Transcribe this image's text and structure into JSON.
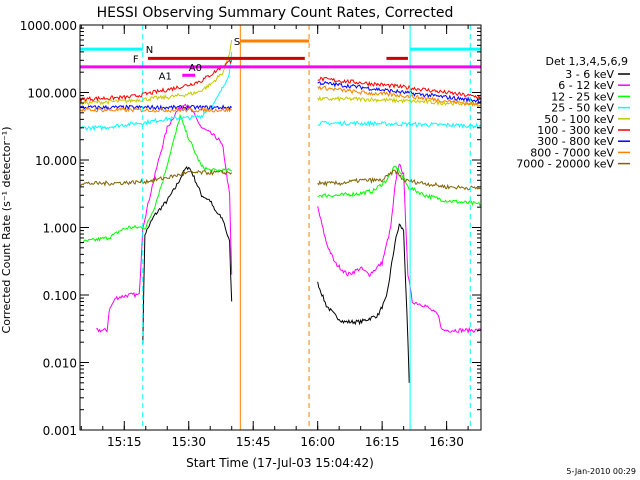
{
  "chart_data": {
    "type": "line",
    "title": "HESSI Observing Summary Count Rates, Corrected",
    "xlabel": "Start Time (17-Jul-03 15:04:42)",
    "ylabel": "Corrected Count Rate (s⁻¹ detector⁻¹)",
    "y_scale": "log",
    "ylim": [
      0.001,
      1000
    ],
    "xlim_minutes_after_15_00": [
      4.7,
      98
    ],
    "x_ticks": [
      {
        "minute": 15,
        "label": "15:15"
      },
      {
        "minute": 30,
        "label": "15:30"
      },
      {
        "minute": 45,
        "label": "15:45"
      },
      {
        "minute": 60,
        "label": "16:00"
      },
      {
        "minute": 75,
        "label": "16:15"
      },
      {
        "minute": 90,
        "label": "16:30"
      }
    ],
    "y_ticks": [
      {
        "value": 1000,
        "label": "1000.000"
      },
      {
        "value": 100,
        "label": "100.000"
      },
      {
        "value": 10,
        "label": "10.000"
      },
      {
        "value": 1,
        "label": "1.000"
      },
      {
        "value": 0.1,
        "label": "0.100"
      },
      {
        "value": 0.01,
        "label": "0.010"
      },
      {
        "value": 0.001,
        "label": "0.001"
      }
    ],
    "legend_title": "Det 1,3,4,5,6,9",
    "legend_placement": "right",
    "series": [
      {
        "name": "3 - 6 keV",
        "color": "#000000",
        "segments": [
          [
            [
              19.3,
              0.02
            ],
            [
              19.8,
              0.8
            ],
            [
              22,
              1.5
            ],
            [
              25,
              2.5
            ],
            [
              27,
              4
            ],
            [
              29,
              7
            ],
            [
              30,
              8
            ],
            [
              31,
              6
            ],
            [
              33,
              3
            ],
            [
              35,
              2.5
            ],
            [
              36,
              1.8
            ],
            [
              38,
              1.3
            ],
            [
              39.5,
              0.6
            ],
            [
              40,
              0.08
            ]
          ],
          [
            [
              60,
              0.15
            ],
            [
              62,
              0.07
            ],
            [
              64,
              0.05
            ],
            [
              66,
              0.04
            ],
            [
              70,
              0.04
            ],
            [
              74,
              0.05
            ],
            [
              76,
              0.09
            ],
            [
              78,
              0.6
            ],
            [
              79,
              1.1
            ],
            [
              80,
              0.9
            ],
            [
              81,
              0.02
            ],
            [
              81.3,
              0.005
            ]
          ]
        ]
      },
      {
        "name": "6 - 12 keV",
        "color": "#ff00ff",
        "segments": [
          [
            [
              8.5,
              0.03
            ],
            [
              11,
              0.03
            ],
            [
              11.5,
              0.06
            ],
            [
              13,
              0.09
            ],
            [
              16,
              0.1
            ],
            [
              18.5,
              0.1
            ],
            [
              19.3,
              1
            ],
            [
              21,
              3
            ],
            [
              23,
              10
            ],
            [
              25,
              30
            ],
            [
              27,
              50
            ],
            [
              28,
              60
            ],
            [
              29,
              70
            ],
            [
              30,
              60
            ],
            [
              31,
              50
            ],
            [
              33,
              30
            ],
            [
              35,
              25
            ],
            [
              37,
              20
            ],
            [
              38,
              15
            ],
            [
              39.5,
              3
            ],
            [
              40,
              0.2
            ]
          ],
          [
            [
              60,
              2
            ],
            [
              62,
              0.6
            ],
            [
              64,
              0.3
            ],
            [
              67,
              0.2
            ],
            [
              70,
              0.25
            ],
            [
              72,
              0.2
            ],
            [
              75,
              0.3
            ],
            [
              77,
              1
            ],
            [
              78,
              4
            ],
            [
              79,
              9
            ],
            [
              80,
              6
            ],
            [
              81,
              0.2
            ],
            [
              82,
              0.08
            ],
            [
              85,
              0.07
            ],
            [
              88,
              0.05
            ],
            [
              89,
              0.03
            ],
            [
              98,
              0.03
            ]
          ]
        ]
      },
      {
        "name": "12 - 25 keV",
        "color": "#00ff00",
        "segments": [
          [
            [
              4.7,
              0.6
            ],
            [
              11,
              0.7
            ],
            [
              13,
              0.8
            ],
            [
              14,
              0.9
            ],
            [
              16,
              1
            ],
            [
              18,
              1
            ],
            [
              20,
              1
            ],
            [
              22,
              2
            ],
            [
              24,
              5
            ],
            [
              26,
              15
            ],
            [
              27,
              25
            ],
            [
              28,
              45
            ],
            [
              29,
              30
            ],
            [
              31,
              15
            ],
            [
              33,
              8
            ],
            [
              35,
              7
            ],
            [
              38,
              7
            ],
            [
              40,
              7
            ]
          ],
          [
            [
              60,
              3
            ],
            [
              65,
              3
            ],
            [
              70,
              3.2
            ],
            [
              73,
              3.5
            ],
            [
              76,
              5
            ],
            [
              78,
              8
            ],
            [
              79,
              7
            ],
            [
              81,
              4
            ],
            [
              85,
              3
            ],
            [
              90,
              2.5
            ],
            [
              98,
              2.2
            ]
          ]
        ]
      },
      {
        "name": "25 - 50 keV",
        "color": "#00ffff",
        "segments": [
          [
            [
              4.7,
              30
            ],
            [
              10,
              30
            ],
            [
              16,
              34
            ],
            [
              20,
              36
            ],
            [
              24,
              40
            ],
            [
              28,
              42
            ],
            [
              30,
              42
            ],
            [
              33,
              45
            ],
            [
              36,
              70
            ],
            [
              38,
              120
            ],
            [
              39.5,
              200
            ],
            [
              40,
              400
            ]
          ],
          [
            [
              60,
              35
            ],
            [
              70,
              35
            ],
            [
              80,
              34
            ],
            [
              90,
              33
            ],
            [
              98,
              32
            ]
          ]
        ]
      },
      {
        "name": "50 - 100 keV",
        "color": "#c8c800",
        "segments": [
          [
            [
              4.7,
              70
            ],
            [
              10,
              72
            ],
            [
              16,
              75
            ],
            [
              20,
              80
            ],
            [
              25,
              85
            ],
            [
              28,
              90
            ],
            [
              32,
              100
            ],
            [
              35,
              130
            ],
            [
              38,
              200
            ],
            [
              39.5,
              400
            ],
            [
              40,
              600
            ]
          ],
          [
            [
              60,
              80
            ],
            [
              70,
              80
            ],
            [
              80,
              75
            ],
            [
              90,
              70
            ],
            [
              98,
              68
            ]
          ]
        ]
      },
      {
        "name": "100 - 300 keV",
        "color": "#ff0000",
        "segments": [
          [
            [
              4.7,
              80
            ],
            [
              10,
              82
            ],
            [
              16,
              85
            ],
            [
              20,
              95
            ],
            [
              25,
              110
            ],
            [
              30,
              130
            ],
            [
              33,
              150
            ],
            [
              36,
              200
            ],
            [
              38,
              250
            ],
            [
              40,
              300
            ]
          ],
          [
            [
              60,
              160
            ],
            [
              65,
              150
            ],
            [
              70,
              140
            ],
            [
              75,
              130
            ],
            [
              80,
              120
            ],
            [
              85,
              110
            ],
            [
              90,
              100
            ],
            [
              95,
              90
            ],
            [
              98,
              85
            ]
          ]
        ]
      },
      {
        "name": "300 - 800 keV",
        "color": "#0000ff",
        "segments": [
          [
            [
              4.7,
              60
            ],
            [
              20,
              60
            ],
            [
              30,
              60
            ],
            [
              40,
              60
            ]
          ],
          [
            [
              60,
              140
            ],
            [
              70,
              120
            ],
            [
              80,
              100
            ],
            [
              90,
              85
            ],
            [
              98,
              75
            ]
          ]
        ]
      },
      {
        "name": "800 - 7000 keV",
        "color": "#ff8000",
        "segments": [
          [
            [
              4.7,
              55
            ],
            [
              20,
              55
            ],
            [
              30,
              55
            ],
            [
              40,
              55
            ]
          ],
          [
            [
              60,
              120
            ],
            [
              70,
              100
            ],
            [
              80,
              90
            ],
            [
              90,
              75
            ],
            [
              98,
              65
            ]
          ]
        ]
      },
      {
        "name": "7000 - 20000 keV",
        "color": "#806400",
        "segments": [
          [
            [
              4.7,
              4.5
            ],
            [
              10,
              4.5
            ],
            [
              15,
              4.6
            ],
            [
              20,
              4.8
            ],
            [
              25,
              5.5
            ],
            [
              30,
              6.5
            ],
            [
              35,
              6.5
            ],
            [
              40,
              6.5
            ]
          ],
          [
            [
              60,
              4.5
            ],
            [
              65,
              4.5
            ],
            [
              70,
              5
            ],
            [
              75,
              5
            ],
            [
              78,
              7
            ],
            [
              80,
              5
            ],
            [
              85,
              4.5
            ],
            [
              90,
              4
            ],
            [
              98,
              3.8
            ]
          ]
        ]
      }
    ],
    "vertical_lines": [
      {
        "minute": 4.7,
        "color": "#00ffff",
        "style": "solid"
      },
      {
        "minute": 19.3,
        "color": "#00ffff",
        "style": "dashed"
      },
      {
        "minute": 42,
        "color": "#ff8000",
        "style": "solid"
      },
      {
        "minute": 58,
        "color": "#ff8000",
        "style": "dashed"
      },
      {
        "minute": 81.5,
        "color": "#00ffff",
        "style": "solid"
      },
      {
        "minute": 95.5,
        "color": "#00ffff",
        "style": "dashed"
      }
    ],
    "flag_bars": [
      {
        "label": "N",
        "color": "#00ffff",
        "y_value": 440,
        "spans": [
          [
            4.7,
            19.3
          ],
          [
            81.5,
            98
          ]
        ],
        "label_minute": 20
      },
      {
        "label": "F",
        "color": "#cc0000",
        "y_value": 320,
        "spans": [
          [
            20.5,
            57
          ],
          [
            76,
            81
          ]
        ],
        "label_minute": 17
      },
      {
        "label": "S",
        "color": "#ff8000",
        "y_value": 580,
        "spans": [
          [
            42,
            58
          ]
        ],
        "label_minute": 40.5
      },
      {
        "label": "",
        "color": "#ff00ff",
        "y_value": 240,
        "spans": [
          [
            4.7,
            98
          ]
        ],
        "label_minute": null
      },
      {
        "label": "A0",
        "color": "#ff00ff",
        "y_value": 240,
        "spans": [],
        "label_minute": 30
      },
      {
        "label": "A1",
        "color": "#ff00ff",
        "y_value": 180,
        "spans": [
          [
            28.5,
            31.5
          ]
        ],
        "label_minute": 23
      }
    ]
  },
  "footer": {
    "date": "5-Jan-2010 00:29"
  }
}
